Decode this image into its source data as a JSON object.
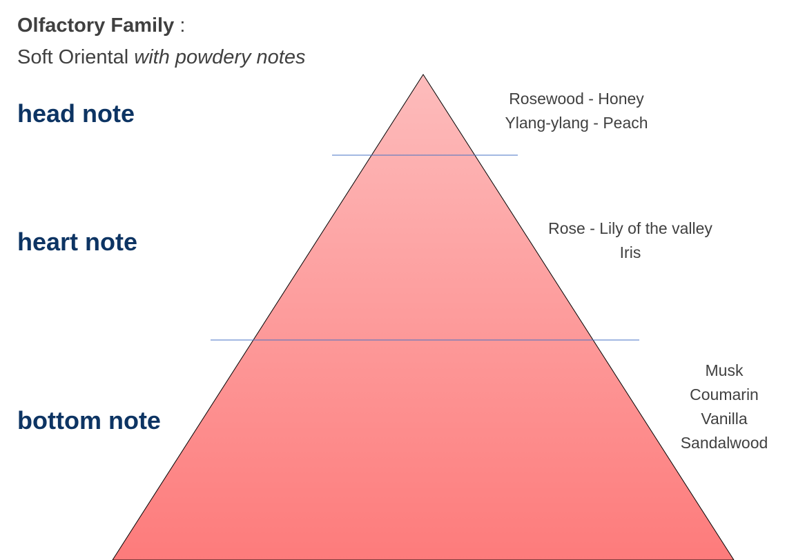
{
  "header": {
    "family_label": "Olfactory Family",
    "separator": ":",
    "family_value": "Soft Oriental",
    "family_qualifier": "with powdery notes"
  },
  "levels": [
    {
      "label": "head note",
      "notes": [
        "Rosewood - Honey",
        "Ylang-ylang - Peach"
      ]
    },
    {
      "label": "heart note",
      "notes": [
        "Rose - Lily of the valley",
        "Iris"
      ]
    },
    {
      "label": "bottom note",
      "notes": [
        "Musk",
        "Coumarin",
        "Vanilla",
        "Sandalwood"
      ]
    }
  ]
}
